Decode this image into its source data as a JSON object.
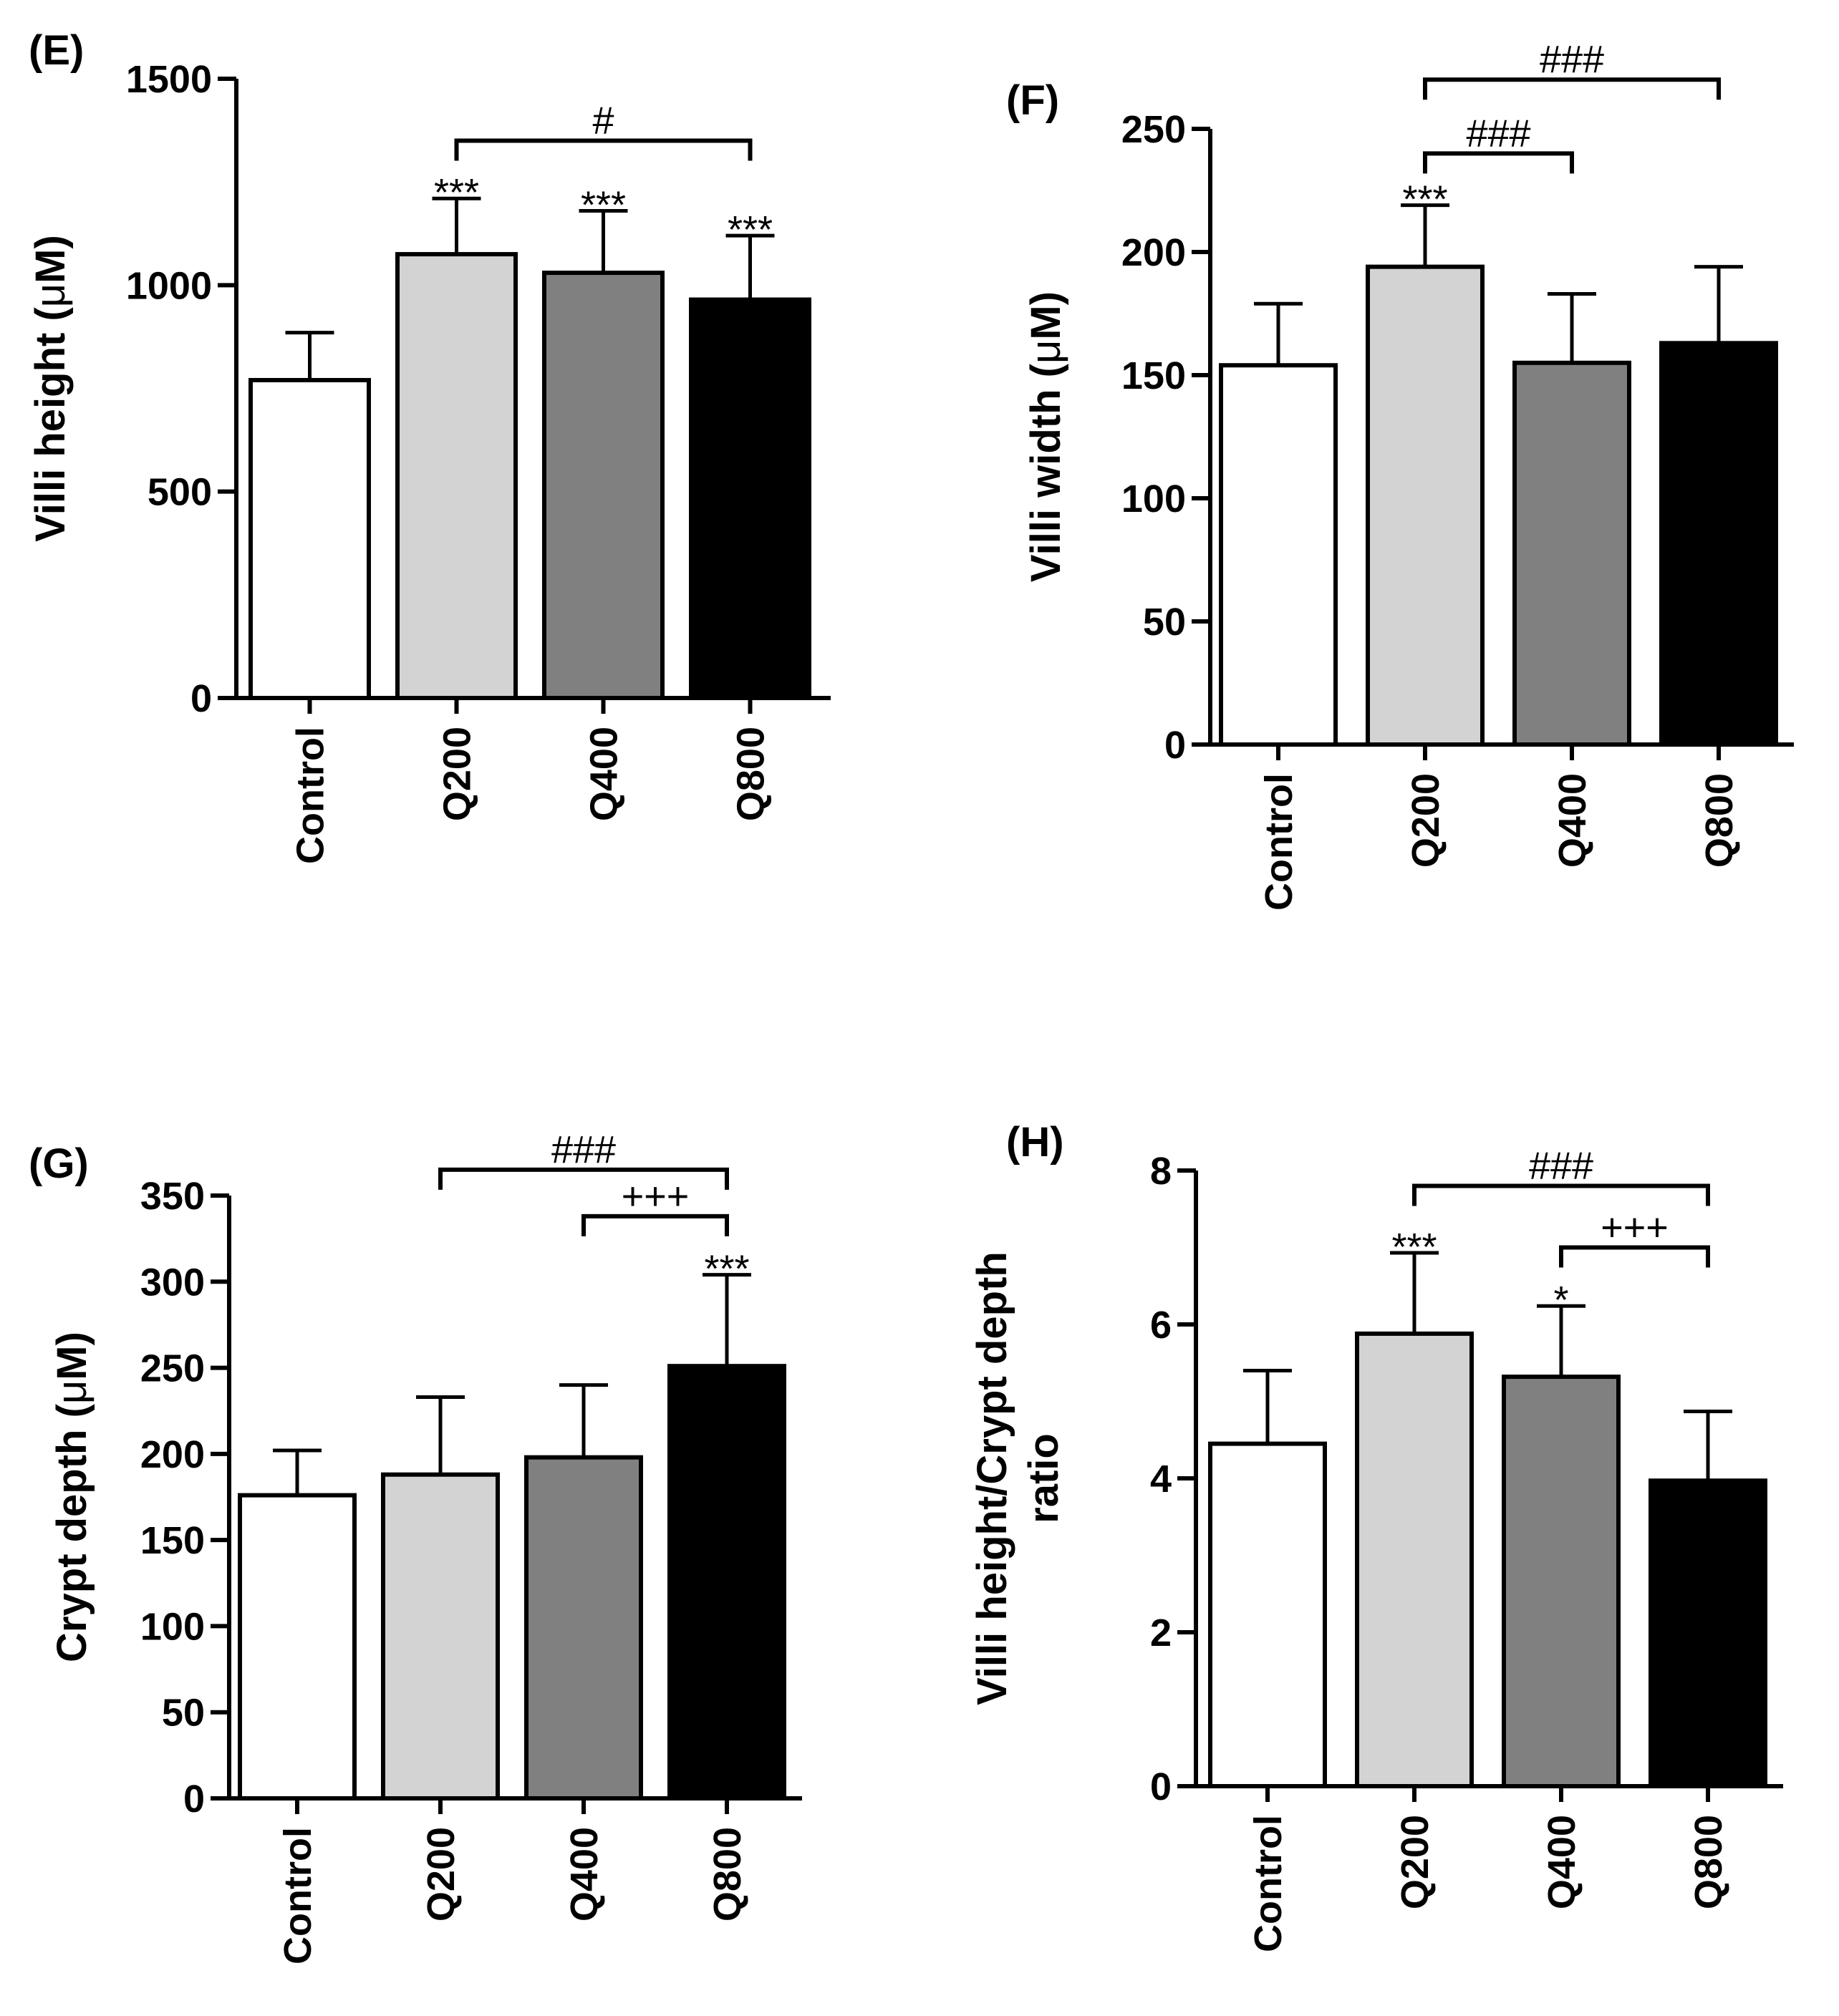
{
  "chart_data": [
    {
      "type": "bar",
      "panel_label": "(E)",
      "categories": [
        "Control",
        "Q200",
        "Q400",
        "Q800"
      ],
      "series": [
        {
          "name": "Villi height",
          "values": [
            770,
            1075,
            1030,
            965
          ],
          "errors": [
            115,
            135,
            150,
            155
          ]
        }
      ],
      "colors": [
        "#ffffff",
        "#d3d3d3",
        "#808080",
        "#000000"
      ],
      "ylabel_parts": [
        "Villi height (",
        "μ",
        "M)"
      ],
      "ylim": [
        0,
        1500
      ],
      "yticks": [
        0,
        500,
        1000,
        1500
      ],
      "stars": [
        {
          "index": 1,
          "text": "***"
        },
        {
          "index": 2,
          "text": "***"
        },
        {
          "index": 3,
          "text": "***"
        }
      ],
      "brackets": [
        {
          "from": 1,
          "to": 3,
          "y": 1350,
          "text": "#"
        }
      ]
    },
    {
      "type": "bar",
      "panel_label": "(F)",
      "categories": [
        "Control",
        "Q200",
        "Q400",
        "Q800"
      ],
      "series": [
        {
          "name": "Villi width",
          "values": [
            154,
            194,
            155,
            163
          ],
          "errors": [
            25,
            25,
            28,
            31
          ]
        }
      ],
      "colors": [
        "#ffffff",
        "#d3d3d3",
        "#808080",
        "#000000"
      ],
      "ylabel_parts": [
        "Villi width (",
        "μ",
        "M)"
      ],
      "ylim": [
        0,
        250
      ],
      "yticks": [
        0,
        50,
        100,
        150,
        200,
        250
      ],
      "stars": [
        {
          "index": 1,
          "text": "***"
        }
      ],
      "brackets": [
        {
          "from": 1,
          "to": 2,
          "y": 240,
          "text": "###"
        },
        {
          "from": 1,
          "to": 3,
          "y": 270,
          "text": "###"
        }
      ]
    },
    {
      "type": "bar",
      "panel_label": "(G)",
      "categories": [
        "Control",
        "Q200",
        "Q400",
        "Q800"
      ],
      "series": [
        {
          "name": "Crypt depth",
          "values": [
            176,
            188,
            198,
            251
          ],
          "errors": [
            26,
            45,
            42,
            53
          ]
        }
      ],
      "colors": [
        "#ffffff",
        "#d3d3d3",
        "#808080",
        "#000000"
      ],
      "ylabel_parts": [
        "Crypt depth (",
        "μ",
        "M)"
      ],
      "ylim": [
        0,
        350
      ],
      "yticks": [
        0,
        50,
        100,
        150,
        200,
        250,
        300,
        350
      ],
      "stars": [
        {
          "index": 3,
          "text": "***"
        }
      ],
      "brackets": [
        {
          "from": 2,
          "to": 3,
          "y": 338,
          "text": "+++"
        },
        {
          "from": 1,
          "to": 3,
          "y": 365,
          "text": "###"
        }
      ]
    },
    {
      "type": "bar",
      "panel_label": "(H)",
      "categories": [
        "Control",
        "Q200",
        "Q400",
        "Q800"
      ],
      "series": [
        {
          "name": "Villi height/Crypt depth ratio",
          "values": [
            4.45,
            5.88,
            5.32,
            3.97
          ],
          "errors": [
            0.95,
            1.05,
            0.92,
            0.9
          ]
        }
      ],
      "colors": [
        "#ffffff",
        "#d3d3d3",
        "#808080",
        "#000000"
      ],
      "ylabel_lines": [
        "Villi height/Crypt depth",
        "ratio"
      ],
      "ylim": [
        0,
        8
      ],
      "yticks": [
        0,
        2,
        4,
        6,
        8
      ],
      "stars": [
        {
          "index": 1,
          "text": "***"
        },
        {
          "index": 2,
          "text": "*"
        }
      ],
      "brackets": [
        {
          "from": 2,
          "to": 3,
          "y": 7.0,
          "text": "+++"
        },
        {
          "from": 1,
          "to": 3,
          "y": 7.8,
          "text": "###"
        }
      ]
    }
  ]
}
